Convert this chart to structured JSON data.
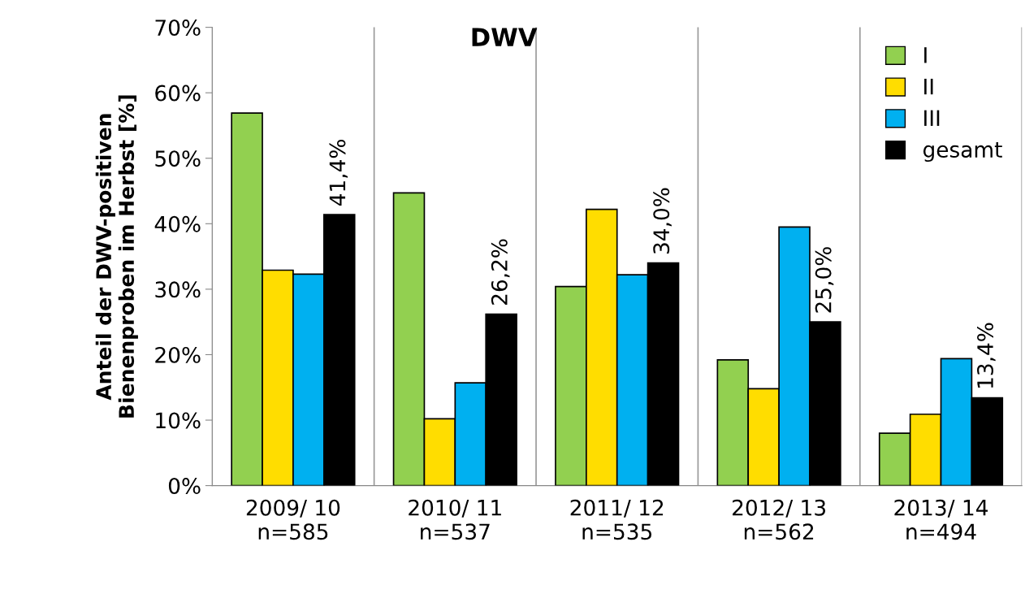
{
  "chart_data": {
    "type": "bar",
    "title": "DWV",
    "ylabel": "Anteil der DWV-positiven\nBienenproben im Herbst [%]",
    "categories": [
      "2009/ 10\nn=585",
      "2010/ 11\nn=537",
      "2011/ 12\nn=535",
      "2012/ 13\nn=562",
      "2013/ 14\nn=494"
    ],
    "series": [
      {
        "name": "I",
        "color": "#92d050",
        "values": [
          56.9,
          44.7,
          30.4,
          19.2,
          8.0
        ]
      },
      {
        "name": "II",
        "color": "#ffdd00",
        "values": [
          32.9,
          10.2,
          42.2,
          14.8,
          10.9
        ]
      },
      {
        "name": "III",
        "color": "#00b0f0",
        "values": [
          32.3,
          15.7,
          32.2,
          39.5,
          19.4
        ]
      },
      {
        "name": "gesamt",
        "color": "#000000",
        "values": [
          41.4,
          26.2,
          34.0,
          25.0,
          13.4
        ],
        "value_labels": [
          "41,4%",
          "26,2%",
          "34,0%",
          "25,0%",
          "13,4%"
        ]
      }
    ],
    "ylim": [
      0,
      70
    ],
    "yticks": [
      {
        "value": 0,
        "label": "0%"
      },
      {
        "value": 10,
        "label": "10%"
      },
      {
        "value": 20,
        "label": "20%"
      },
      {
        "value": 30,
        "label": "30%"
      },
      {
        "value": 40,
        "label": "40%"
      },
      {
        "value": 50,
        "label": "50%"
      },
      {
        "value": 60,
        "label": "60%"
      },
      {
        "value": 70,
        "label": "70%"
      }
    ],
    "grid": "x",
    "legend": "top right"
  }
}
